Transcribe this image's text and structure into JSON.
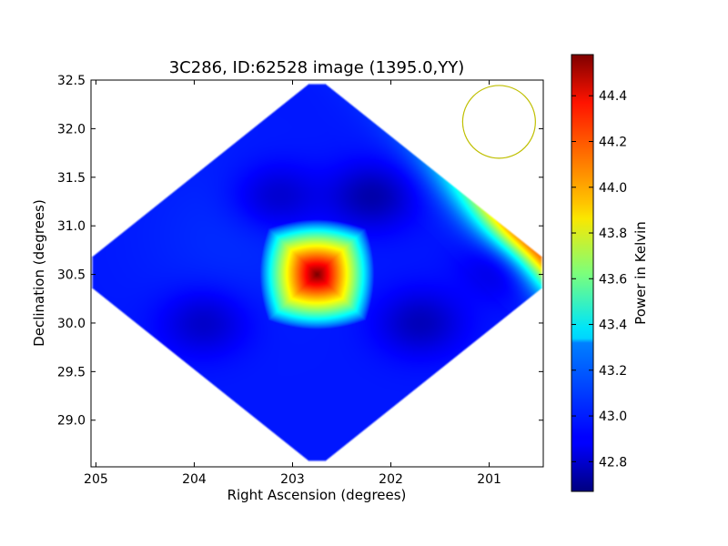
{
  "chart_data": {
    "type": "heatmap",
    "title": "3C286, ID:62528 image (1395.0,YY)",
    "xlabel": "Right Ascension (degrees)",
    "ylabel": "Declination (degrees)",
    "xlim": [
      205.05,
      200.45
    ],
    "ylim": [
      28.52,
      32.5
    ],
    "x_ticks": [
      {
        "value": 205,
        "label": "205"
      },
      {
        "value": 204,
        "label": "204"
      },
      {
        "value": 203,
        "label": "203"
      },
      {
        "value": 202,
        "label": "202"
      },
      {
        "value": 201,
        "label": "201"
      }
    ],
    "y_ticks": [
      {
        "value": 29.0,
        "label": "29.0"
      },
      {
        "value": 29.5,
        "label": "29.5"
      },
      {
        "value": 30.0,
        "label": "30.0"
      },
      {
        "value": 30.5,
        "label": "30.5"
      },
      {
        "value": 31.0,
        "label": "31.0"
      },
      {
        "value": 31.5,
        "label": "31.5"
      },
      {
        "value": 32.0,
        "label": "32.0"
      },
      {
        "value": 32.5,
        "label": "32.5"
      }
    ],
    "colorbar": {
      "label": "Power in Kelvin",
      "range": [
        42.67,
        44.58
      ],
      "ticks": [
        {
          "value": 42.8,
          "label": "42.8"
        },
        {
          "value": 43.0,
          "label": "43.0"
        },
        {
          "value": 43.2,
          "label": "43.2"
        },
        {
          "value": 43.4,
          "label": "43.4"
        },
        {
          "value": 43.6,
          "label": "43.6"
        },
        {
          "value": 43.8,
          "label": "43.8"
        },
        {
          "value": 44.0,
          "label": "44.0"
        },
        {
          "value": 44.2,
          "label": "44.2"
        },
        {
          "value": 44.4,
          "label": "44.4"
        }
      ],
      "colormap": "jet"
    },
    "map": {
      "footprint_center_ra": 202.75,
      "footprint_center_dec": 30.52,
      "footprint_half_width_deg": 2.45,
      "background_level": 42.95,
      "peak": {
        "ra": 202.75,
        "dec": 30.5,
        "value": 44.58
      },
      "hot_edge_level": 44.2,
      "cool_spots": [
        {
          "ra": 203.15,
          "dec": 31.3,
          "value": 42.8
        },
        {
          "ra": 202.2,
          "dec": 31.3,
          "value": 42.75
        },
        {
          "ra": 203.9,
          "dec": 30.0,
          "value": 42.8
        },
        {
          "ra": 201.7,
          "dec": 30.0,
          "value": 42.78
        },
        {
          "ra": 200.8,
          "dec": 30.6,
          "value": 42.8
        }
      ]
    },
    "beam": {
      "ra": 200.9,
      "dec": 32.07,
      "radius_deg": 0.37,
      "color": "#bfbf00"
    },
    "grid": false,
    "legend": "none"
  }
}
